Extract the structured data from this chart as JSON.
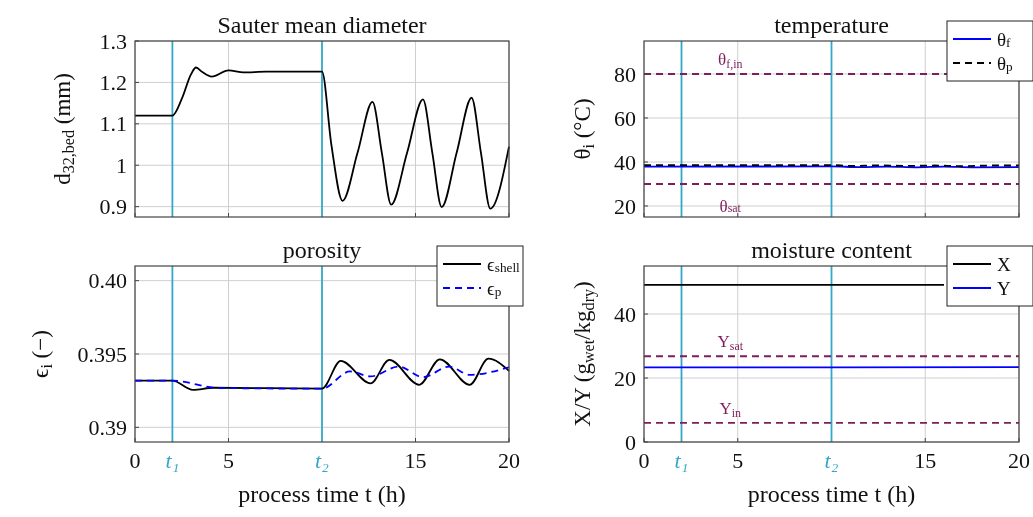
{
  "chart_data": [
    {
      "type": "line",
      "title": "Sauter mean diameter",
      "ylabel": "d$_{32,bed}$  (mm)",
      "xlim": [
        0,
        20
      ],
      "ylim": [
        0.875,
        1.3
      ],
      "xticks": [
        0,
        5,
        15,
        20
      ],
      "yticks": [
        {
          "value": 0.9,
          "label": "0.9"
        },
        1,
        1.1,
        1.2,
        1.3
      ],
      "tick_labels": "y",
      "grid": true,
      "legend": false,
      "ref_lines": [
        {
          "axis": "x",
          "value": 2,
          "color": "#33a7c9"
        },
        {
          "axis": "x",
          "value": 10,
          "color": "#33a7c9"
        }
      ],
      "series": [
        {
          "color": "#000000",
          "line_style": "solid",
          "x": [
            0,
            2,
            2.5,
            3,
            3.26,
            3.6,
            4.1,
            5,
            5.8,
            7,
            10,
            10.5,
            11.1,
            11.9,
            12.7,
            13.2,
            13.7,
            14.55,
            15.4,
            15.9,
            16.4,
            17.2,
            18,
            18.5,
            19,
            20
          ],
          "values": [
            1.12,
            1.12,
            1.16,
            1.22,
            1.236,
            1.225,
            1.214,
            1.229,
            1.224,
            1.226,
            1.226,
            1.05,
            0.914,
            1.03,
            1.153,
            1.03,
            0.905,
            1.03,
            1.159,
            1.03,
            0.899,
            1.03,
            1.163,
            1.03,
            0.895,
            1.045
          ]
        }
      ]
    },
    {
      "type": "line",
      "title": "temperature",
      "ylabel": "θ$_{i}$  (°C)",
      "xlim": [
        0,
        20
      ],
      "ylim": [
        15,
        95
      ],
      "xticks": [
        0,
        5,
        15,
        20
      ],
      "yticks": [
        20,
        40,
        60,
        80
      ],
      "tick_labels": "y",
      "grid": true,
      "legend": "top right",
      "ref_lines": [
        {
          "axis": "x",
          "value": 2,
          "color": "#33a7c9"
        },
        {
          "axis": "x",
          "value": 10,
          "color": "#33a7c9"
        },
        {
          "axis": "y",
          "value": 80,
          "color": "#7e1e5c",
          "line_style": "dashed",
          "label": "θ$_{f,in}$"
        },
        {
          "axis": "y",
          "value": 30,
          "color": "#7e1e5c",
          "line_style": "dashed",
          "label": "θ$_{sat}$"
        }
      ],
      "series": [
        {
          "name": "θ$_{f}$",
          "color": "#0000ff",
          "line_style": "solid",
          "x": [
            0,
            10,
            11.5,
            13,
            14.5,
            16,
            17.5,
            20
          ],
          "values": [
            37.9,
            38,
            37.7,
            37.9,
            37.6,
            37.9,
            37.6,
            37.7
          ]
        },
        {
          "name": "θ$_{p}$",
          "color": "#000000",
          "line_style": "dashed",
          "x": [
            0,
            10,
            11,
            12.5,
            14,
            15.5,
            17,
            18.5,
            20
          ],
          "values": [
            38.6,
            38.6,
            38.2,
            38.5,
            38.2,
            38.4,
            38.1,
            38.4,
            38.4
          ]
        }
      ]
    },
    {
      "type": "line",
      "title": "porosity",
      "xlabel": "process time t  (h)",
      "ylabel": "ϵ$_{i}$  (−)",
      "xlim": [
        0,
        20
      ],
      "ylim": [
        0.389,
        0.401
      ],
      "xticks": [
        0,
        5,
        15,
        20
      ],
      "yticks": [
        {
          "value": 0.39,
          "label": "0.39"
        },
        0.395,
        {
          "value": 0.4,
          "label": "0.40"
        }
      ],
      "grid": true,
      "legend": "top right",
      "ref_lines": [
        {
          "axis": "x",
          "value": 2,
          "color": "#33a7c9",
          "label": "t₁"
        },
        {
          "axis": "x",
          "value": 10,
          "color": "#33a7c9",
          "label": "t₂"
        }
      ],
      "series": [
        {
          "name": "ϵ$_{shell}$",
          "color": "#000000",
          "line_style": "solid",
          "x": [
            0,
            2,
            3.1,
            4.2,
            10,
            11,
            12.6,
            13.6,
            15.2,
            16.3,
            17.9,
            18.9,
            20
          ],
          "values": [
            0.39318,
            0.39318,
            0.39255,
            0.3927,
            0.39264,
            0.39453,
            0.393,
            0.3946,
            0.3929,
            0.39464,
            0.3929,
            0.39468,
            0.39385
          ]
        },
        {
          "name": "ϵ$_{p}$",
          "color": "#0000ff",
          "line_style": "dashed",
          "x": [
            0,
            2,
            4.5,
            10,
            11.5,
            12.6,
            14.1,
            15.4,
            16.8,
            17.9,
            20
          ],
          "values": [
            0.39318,
            0.39318,
            0.39268,
            0.39264,
            0.39381,
            0.39347,
            0.39414,
            0.39342,
            0.39414,
            0.39358,
            0.3941
          ]
        }
      ]
    },
    {
      "type": "line",
      "title": "moisture content",
      "xlabel": "process time t  (h)",
      "ylabel": "X/Y  (g$_{wet}$/kg$_{dry}$)",
      "xlim": [
        0,
        20
      ],
      "ylim": [
        0,
        55
      ],
      "xticks": [
        0,
        5,
        15,
        20
      ],
      "yticks": [
        0,
        20,
        40
      ],
      "grid": true,
      "legend": "top right",
      "ref_lines": [
        {
          "axis": "x",
          "value": 2,
          "color": "#33a7c9",
          "label": "t₁"
        },
        {
          "axis": "x",
          "value": 10,
          "color": "#33a7c9",
          "label": "t₂"
        },
        {
          "axis": "y",
          "value": 26.8,
          "color": "#7e1e5c",
          "line_style": "dashed",
          "label": "Y$_{sat}$"
        },
        {
          "axis": "y",
          "value": 6,
          "color": "#7e1e5c",
          "line_style": "dashed",
          "label": "Y$_{in}$"
        }
      ],
      "series": [
        {
          "name": "X",
          "color": "#000000",
          "line_style": "solid",
          "x": [
            0,
            16
          ],
          "values": [
            49.1,
            49.1
          ]
        },
        {
          "name": "Y",
          "color": "#0000ff",
          "line_style": "solid",
          "x": [
            0,
            10,
            20
          ],
          "values": [
            23.3,
            23.3,
            23.4
          ]
        }
      ]
    }
  ]
}
